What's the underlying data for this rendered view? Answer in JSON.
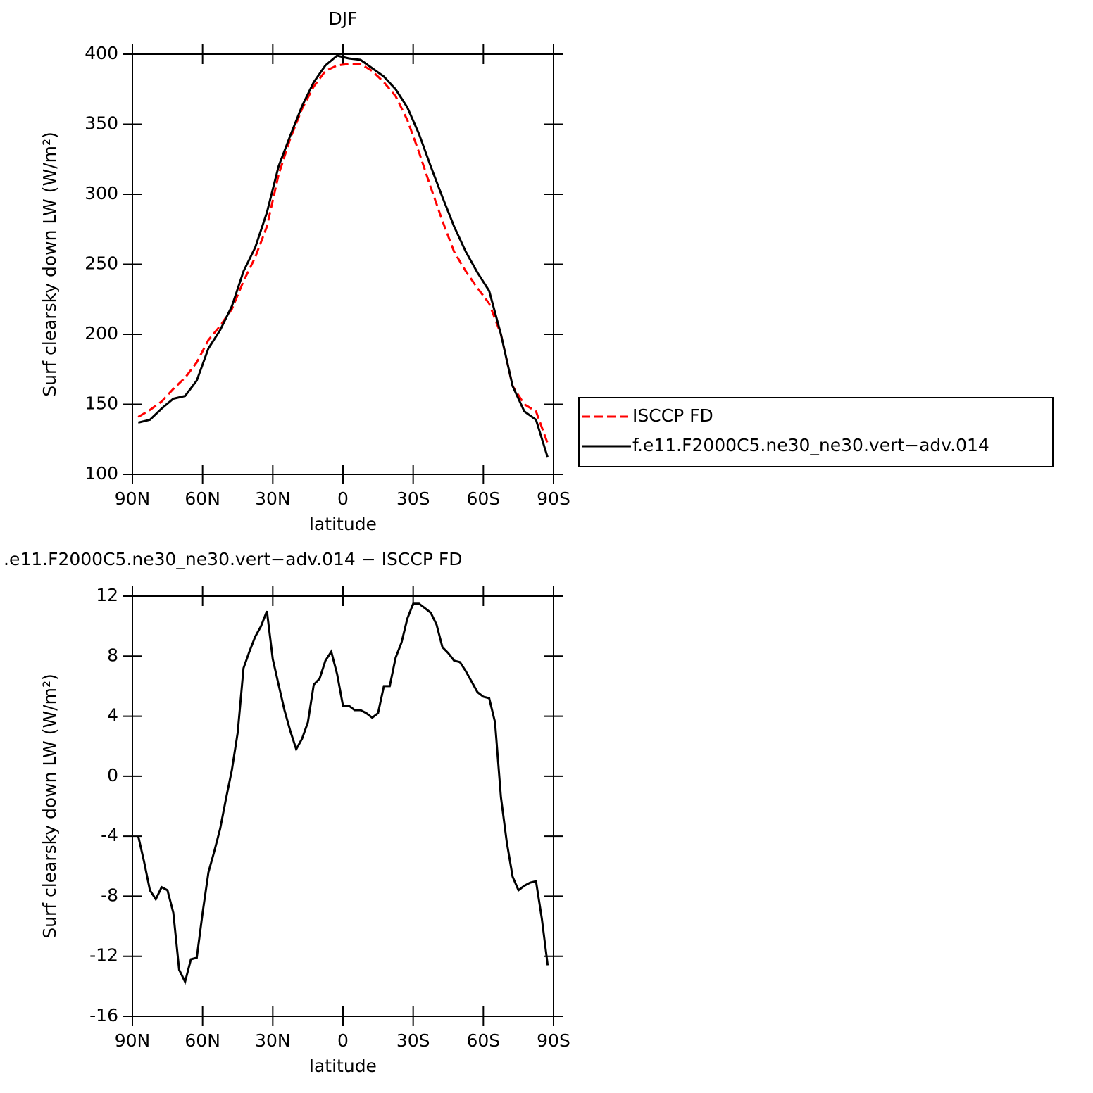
{
  "chart_data": [
    {
      "type": "line",
      "title": "DJF",
      "xlabel": "latitude",
      "ylabel": "Surf clearsky down LW (W/m²)",
      "x": [
        87.5,
        82.5,
        77.5,
        72.5,
        67.5,
        62.5,
        57.5,
        52.5,
        47.5,
        42.5,
        37.5,
        32.5,
        27.5,
        22.5,
        17.5,
        12.5,
        7.5,
        2.5,
        -2.5,
        -7.5,
        -12.5,
        -17.5,
        -22.5,
        -27.5,
        -32.5,
        -37.5,
        -42.5,
        -47.5,
        -52.5,
        -57.5,
        -62.5,
        -67.5,
        -72.5,
        -77.5,
        -82.5,
        -87.5
      ],
      "series": [
        {
          "name": "ISCCP FD",
          "color": "#ff0000",
          "dash": true,
          "values": [
            141,
            146,
            152,
            161,
            169,
            180,
            196,
            206,
            218,
            238,
            255,
            277,
            314,
            340,
            361,
            377,
            388,
            392,
            393,
            393,
            388,
            380,
            370,
            353,
            330,
            305,
            281,
            259,
            245,
            233,
            222,
            200,
            163,
            150,
            145,
            122
          ]
        },
        {
          "name": "f.e11.F2000C5.ne30_ne30.vert−adv.014",
          "color": "#000000",
          "dash": false,
          "values": [
            137,
            139,
            147,
            154,
            156,
            167,
            190,
            203,
            220,
            245,
            262,
            287,
            320,
            342,
            363,
            380,
            392,
            399,
            397,
            396,
            390,
            384,
            375,
            362,
            343,
            320,
            298,
            277,
            259,
            244,
            231,
            200,
            163,
            145,
            139,
            112
          ]
        }
      ],
      "xlim": [
        90,
        -90
      ],
      "xticks": [
        {
          "value": 90,
          "label": "90N"
        },
        {
          "value": 60,
          "label": "60N"
        },
        {
          "value": 30,
          "label": "30N"
        },
        0,
        {
          "value": -30,
          "label": "30S"
        },
        {
          "value": -60,
          "label": "60S"
        },
        {
          "value": -90,
          "label": "90S"
        }
      ],
      "ylim": [
        100,
        400
      ],
      "yticks": [
        100,
        150,
        200,
        250,
        300,
        350,
        400
      ],
      "legend": "right"
    },
    {
      "type": "line",
      "title": ".e11.F2000C5.ne30_ne30.vert−adv.014 − ISCCP FD",
      "xlabel": "latitude",
      "ylabel": "Surf clearsky down LW (W/m²)",
      "x": [
        87.5,
        85,
        82.5,
        80,
        77.5,
        75,
        72.5,
        70,
        67.5,
        65,
        62.5,
        60,
        57.5,
        55,
        52.5,
        50,
        47.5,
        45,
        42.5,
        40,
        37.5,
        35,
        32.5,
        30,
        27.5,
        25,
        22.5,
        20,
        17.5,
        15,
        12.5,
        10,
        7.5,
        5,
        2.5,
        0,
        -2.5,
        -5,
        -7.5,
        -10,
        -12.5,
        -15,
        -17.5,
        -20,
        -22.5,
        -25,
        -27.5,
        -30,
        -32.5,
        -35,
        -37.5,
        -40,
        -42.5,
        -45,
        -47.5,
        -50,
        -52.5,
        -55,
        -57.5,
        -60,
        -62.5,
        -65,
        -67.5,
        -70,
        -72.5,
        -75,
        -77.5,
        -80,
        -82.5,
        -85,
        -87.5
      ],
      "series": [
        {
          "color": "#000000",
          "dash": false,
          "values": [
            -4,
            -5.7,
            -7.6,
            -8.2,
            -7.4,
            -7.6,
            -9.1,
            -12.9,
            -13.7,
            -12.2,
            -12.1,
            -9.1,
            -6.4,
            -5.0,
            -3.5,
            -1.5,
            0.4,
            2.9,
            7.2,
            8.3,
            9.3,
            10.0,
            11.0,
            7.8,
            6.1,
            4.4,
            3.0,
            1.8,
            2.5,
            3.6,
            6.1,
            6.5,
            7.7,
            8.3,
            6.8,
            4.7,
            4.7,
            4.4,
            4.4,
            4.2,
            3.9,
            4.2,
            6.0,
            6.0,
            7.9,
            8.9,
            10.5,
            11.5,
            11.5,
            11.2,
            10.9,
            10.1,
            8.6,
            8.2,
            7.7,
            7.6,
            7.0,
            6.3,
            5.6,
            5.3,
            5.2,
            3.6,
            -1.4,
            -4.4,
            -6.7,
            -7.6,
            -7.3,
            -7.1,
            -7.0,
            -9.5,
            -12.6
          ]
        }
      ],
      "xlim": [
        90,
        -90
      ],
      "xticks": [
        {
          "value": 90,
          "label": "90N"
        },
        {
          "value": 60,
          "label": "60N"
        },
        {
          "value": 30,
          "label": "30N"
        },
        0,
        {
          "value": -30,
          "label": "30S"
        },
        {
          "value": -60,
          "label": "60S"
        },
        {
          "value": -90,
          "label": "90S"
        }
      ],
      "ylim": [
        -16,
        12
      ],
      "yticks": [
        -16,
        -12,
        -8,
        -4,
        0,
        4,
        8,
        12
      ]
    }
  ]
}
